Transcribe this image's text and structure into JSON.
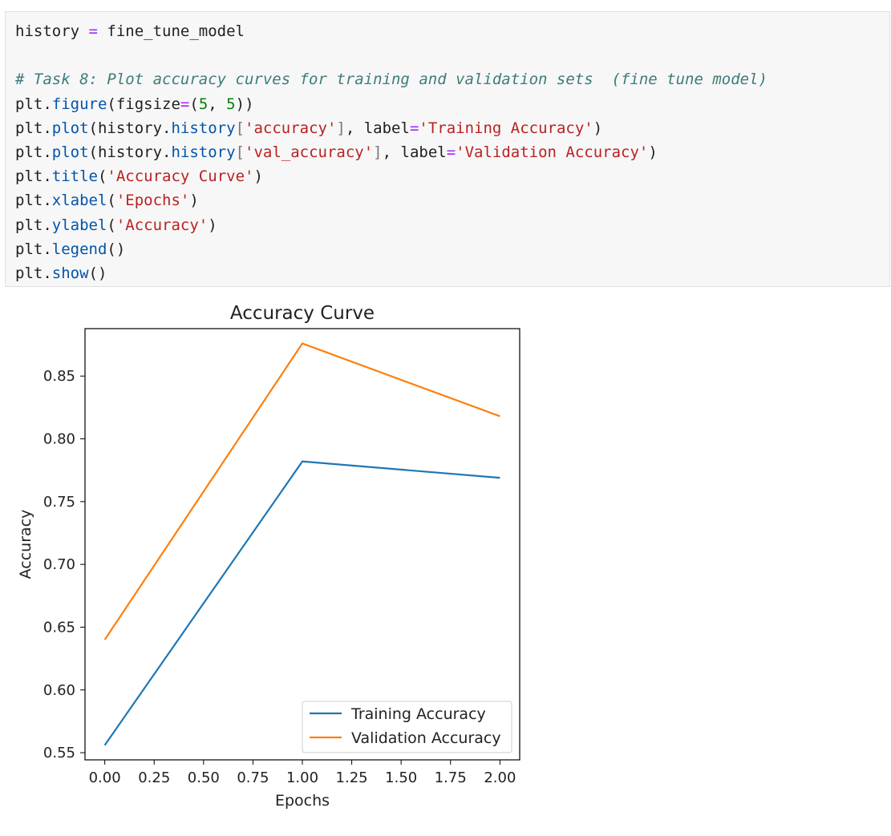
{
  "code_cell": {
    "lines": [
      [
        {
          "t": "history "
        },
        {
          "t": "=",
          "c": "op"
        },
        {
          "t": " fine_tune_model"
        }
      ],
      [],
      [
        {
          "t": "# Task 8: Plot accuracy curves for training and validation sets  (fine tune model)",
          "c": "com"
        }
      ],
      [
        {
          "t": "plt."
        },
        {
          "t": "figure",
          "c": "fn"
        },
        {
          "t": "(figsize"
        },
        {
          "t": "=",
          "c": "op"
        },
        {
          "t": "("
        },
        {
          "t": "5",
          "c": "num"
        },
        {
          "t": ", "
        },
        {
          "t": "5",
          "c": "num"
        },
        {
          "t": "))"
        }
      ],
      [
        {
          "t": "plt."
        },
        {
          "t": "plot",
          "c": "fn"
        },
        {
          "t": "(history."
        },
        {
          "t": "history",
          "c": "fn"
        },
        {
          "t": "[",
          "c": "brk"
        },
        {
          "t": "'accuracy'",
          "c": "str"
        },
        {
          "t": "]",
          "c": "brk"
        },
        {
          "t": ", label"
        },
        {
          "t": "=",
          "c": "op"
        },
        {
          "t": "'Training Accuracy'",
          "c": "str"
        },
        {
          "t": ")"
        }
      ],
      [
        {
          "t": "plt."
        },
        {
          "t": "plot",
          "c": "fn"
        },
        {
          "t": "(history."
        },
        {
          "t": "history",
          "c": "fn"
        },
        {
          "t": "[",
          "c": "brk"
        },
        {
          "t": "'val_accuracy'",
          "c": "str"
        },
        {
          "t": "]",
          "c": "brk"
        },
        {
          "t": ", label"
        },
        {
          "t": "=",
          "c": "op"
        },
        {
          "t": "'Validation Accuracy'",
          "c": "str"
        },
        {
          "t": ")"
        }
      ],
      [
        {
          "t": "plt."
        },
        {
          "t": "title",
          "c": "fn"
        },
        {
          "t": "("
        },
        {
          "t": "'Accuracy Curve'",
          "c": "str"
        },
        {
          "t": ")"
        }
      ],
      [
        {
          "t": "plt."
        },
        {
          "t": "xlabel",
          "c": "fn"
        },
        {
          "t": "("
        },
        {
          "t": "'Epochs'",
          "c": "str"
        },
        {
          "t": ")"
        }
      ],
      [
        {
          "t": "plt."
        },
        {
          "t": "ylabel",
          "c": "fn"
        },
        {
          "t": "("
        },
        {
          "t": "'Accuracy'",
          "c": "str"
        },
        {
          "t": ")"
        }
      ],
      [
        {
          "t": "plt."
        },
        {
          "t": "legend",
          "c": "fn"
        },
        {
          "t": "()"
        }
      ],
      [
        {
          "t": "plt."
        },
        {
          "t": "show",
          "c": "fn"
        },
        {
          "t": "()"
        }
      ]
    ]
  },
  "colors": {
    "operator": "#aa22ff",
    "function": "#0055aa",
    "string": "#ba2121",
    "number": "#008000",
    "bracket": "#777777",
    "comment": "#3d7b7b",
    "series_training": "#1f77b4",
    "series_validation": "#ff7f0e"
  },
  "chart_data": {
    "type": "line",
    "title": "Accuracy Curve",
    "xlabel": "Epochs",
    "ylabel": "Accuracy",
    "x": [
      0,
      1,
      2
    ],
    "series": [
      {
        "name": "Training Accuracy",
        "values": [
          0.556,
          0.782,
          0.769
        ],
        "color": "#1f77b4"
      },
      {
        "name": "Validation Accuracy",
        "values": [
          0.64,
          0.876,
          0.818
        ],
        "color": "#ff7f0e"
      }
    ],
    "xlim": [
      -0.1,
      2.1
    ],
    "ylim": [
      0.5443,
      0.8878
    ],
    "xticks": [
      0.0,
      0.25,
      0.5,
      0.75,
      1.0,
      1.25,
      1.5,
      1.75,
      2.0
    ],
    "xtick_labels": [
      "0.00",
      "0.25",
      "0.50",
      "0.75",
      "1.00",
      "1.25",
      "1.50",
      "1.75",
      "2.00"
    ],
    "yticks": [
      0.55,
      0.6,
      0.65,
      0.7,
      0.75,
      0.8,
      0.85
    ],
    "ytick_labels": [
      "0.55",
      "0.60",
      "0.65",
      "0.70",
      "0.75",
      "0.80",
      "0.85"
    ],
    "grid": false,
    "legend_position": "lower-right"
  }
}
